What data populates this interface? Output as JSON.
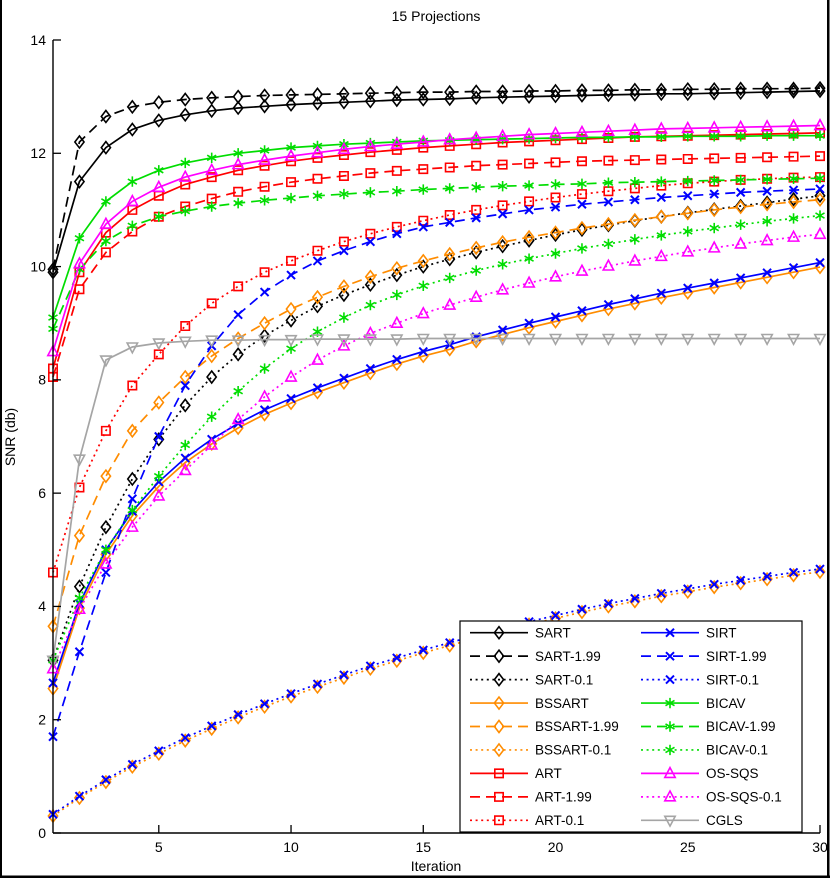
{
  "chart_data": {
    "type": "line",
    "title": "15 Projections",
    "xlabel": "Iteration",
    "ylabel": "SNR (db)",
    "xlim": [
      1,
      30
    ],
    "ylim": [
      0,
      14
    ],
    "x_ticks": [
      5,
      10,
      15,
      20,
      25,
      30
    ],
    "y_ticks": [
      0,
      2,
      4,
      6,
      8,
      10,
      12,
      14
    ],
    "grid": false,
    "legend_position": "inside-bottom-right",
    "legend_columns": [
      [
        "SART",
        "SART-1.99",
        "SART-0.1",
        "BSSART",
        "BSSART-1.99",
        "BSSART-0.1",
        "ART",
        "ART-1.99",
        "ART-0.1"
      ],
      [
        "SIRT",
        "SIRT-1.99",
        "SIRT-0.1",
        "BICAV",
        "BICAV-1.99",
        "BICAV-0.1",
        "OS-SQS",
        "OS-SQS-0.1",
        "CGLS"
      ]
    ],
    "x": [
      1,
      2,
      3,
      4,
      5,
      6,
      7,
      8,
      9,
      10,
      11,
      12,
      13,
      14,
      15,
      16,
      17,
      18,
      19,
      20,
      21,
      22,
      23,
      24,
      25,
      26,
      27,
      28,
      29,
      30
    ],
    "series": [
      {
        "name": "SART",
        "color": "#000000",
        "line": "solid",
        "marker": "diamond",
        "values": [
          9.9,
          11.5,
          12.1,
          12.42,
          12.58,
          12.68,
          12.75,
          12.8,
          12.83,
          12.86,
          12.88,
          12.9,
          12.92,
          12.94,
          12.95,
          12.96,
          12.98,
          12.99,
          13.0,
          13.01,
          13.02,
          13.03,
          13.04,
          13.05,
          13.05,
          13.06,
          13.07,
          13.08,
          13.09,
          13.1
        ]
      },
      {
        "name": "SART-1.99",
        "color": "#000000",
        "line": "dashed",
        "marker": "diamond",
        "values": [
          9.95,
          12.2,
          12.65,
          12.82,
          12.9,
          12.95,
          12.98,
          13.0,
          13.02,
          13.03,
          13.04,
          13.05,
          13.06,
          13.07,
          13.08,
          13.08,
          13.09,
          13.09,
          13.1,
          13.1,
          13.11,
          13.11,
          13.12,
          13.12,
          13.13,
          13.13,
          13.14,
          13.14,
          13.14,
          13.15
        ]
      },
      {
        "name": "SART-0.1",
        "color": "#000000",
        "line": "dotted",
        "marker": "diamond",
        "values": [
          3.05,
          4.35,
          5.4,
          6.25,
          6.95,
          7.55,
          8.05,
          8.45,
          8.78,
          9.05,
          9.3,
          9.5,
          9.68,
          9.85,
          10.0,
          10.13,
          10.25,
          10.36,
          10.46,
          10.56,
          10.65,
          10.73,
          10.81,
          10.88,
          10.95,
          11.01,
          11.07,
          11.13,
          11.19,
          11.25
        ]
      },
      {
        "name": "BSSART",
        "color": "#FF8C00",
        "line": "solid",
        "marker": "diamond",
        "values": [
          2.55,
          3.97,
          4.92,
          5.6,
          6.12,
          6.54,
          6.87,
          7.15,
          7.39,
          7.59,
          7.78,
          7.95,
          8.12,
          8.28,
          8.42,
          8.54,
          8.68,
          8.8,
          8.92,
          9.03,
          9.14,
          9.25,
          9.35,
          9.45,
          9.54,
          9.63,
          9.72,
          9.81,
          9.9,
          9.99
        ]
      },
      {
        "name": "BSSART-1.99",
        "color": "#FF8C00",
        "line": "dashed",
        "marker": "diamond",
        "values": [
          3.65,
          5.25,
          6.3,
          7.1,
          7.6,
          8.05,
          8.42,
          8.73,
          9.0,
          9.25,
          9.46,
          9.65,
          9.82,
          9.97,
          10.1,
          10.22,
          10.33,
          10.43,
          10.52,
          10.6,
          10.68,
          10.75,
          10.82,
          10.88,
          10.94,
          11.0,
          11.05,
          11.1,
          11.14,
          11.18
        ]
      },
      {
        "name": "BSSART-0.1",
        "color": "#FF8C00",
        "line": "dotted",
        "marker": "diamond",
        "values": [
          0.3,
          0.62,
          0.9,
          1.17,
          1.4,
          1.63,
          1.84,
          2.04,
          2.23,
          2.41,
          2.58,
          2.74,
          2.9,
          3.04,
          3.18,
          3.31,
          3.44,
          3.56,
          3.68,
          3.79,
          3.9,
          4.0,
          4.09,
          4.18,
          4.26,
          4.34,
          4.41,
          4.48,
          4.55,
          4.61
        ]
      },
      {
        "name": "ART",
        "color": "#FF0000",
        "line": "solid",
        "marker": "square",
        "values": [
          8.2,
          9.9,
          10.6,
          11.0,
          11.25,
          11.45,
          11.58,
          11.7,
          11.78,
          11.86,
          11.92,
          11.97,
          12.02,
          12.06,
          12.1,
          12.13,
          12.16,
          12.19,
          12.21,
          12.23,
          12.25,
          12.27,
          12.29,
          12.3,
          12.31,
          12.32,
          12.33,
          12.34,
          12.35,
          12.36
        ]
      },
      {
        "name": "ART-1.99",
        "color": "#FF0000",
        "line": "dashed",
        "marker": "square",
        "values": [
          8.05,
          9.6,
          10.25,
          10.62,
          10.88,
          11.06,
          11.2,
          11.32,
          11.41,
          11.49,
          11.55,
          11.6,
          11.65,
          11.69,
          11.72,
          11.75,
          11.78,
          11.8,
          11.82,
          11.84,
          11.86,
          11.87,
          11.88,
          11.89,
          11.9,
          11.91,
          11.92,
          11.93,
          11.94,
          11.95
        ]
      },
      {
        "name": "ART-0.1",
        "color": "#FF0000",
        "line": "dotted",
        "marker": "square",
        "values": [
          4.6,
          6.1,
          7.1,
          7.9,
          8.45,
          8.95,
          9.35,
          9.65,
          9.9,
          10.1,
          10.28,
          10.44,
          10.58,
          10.7,
          10.81,
          10.91,
          11.0,
          11.08,
          11.15,
          11.22,
          11.28,
          11.33,
          11.38,
          11.43,
          11.47,
          11.5,
          11.53,
          11.55,
          11.57,
          11.58
        ]
      },
      {
        "name": "SIRT",
        "color": "#0000FF",
        "line": "solid",
        "marker": "x",
        "values": [
          2.65,
          4.05,
          5.0,
          5.68,
          6.2,
          6.62,
          6.95,
          7.23,
          7.47,
          7.67,
          7.86,
          8.03,
          8.2,
          8.36,
          8.5,
          8.62,
          8.76,
          8.88,
          9.0,
          9.11,
          9.22,
          9.33,
          9.43,
          9.53,
          9.62,
          9.71,
          9.8,
          9.89,
          9.98,
          10.07
        ]
      },
      {
        "name": "SIRT-1.99",
        "color": "#0000FF",
        "line": "dashed",
        "marker": "x",
        "values": [
          1.7,
          3.2,
          4.6,
          5.9,
          7.0,
          7.9,
          8.6,
          9.15,
          9.55,
          9.85,
          10.1,
          10.28,
          10.44,
          10.58,
          10.7,
          10.78,
          10.86,
          10.93,
          11.0,
          11.05,
          11.1,
          11.14,
          11.18,
          11.22,
          11.25,
          11.28,
          11.31,
          11.33,
          11.35,
          11.37
        ]
      },
      {
        "name": "SIRT-0.1",
        "color": "#0000FF",
        "line": "dotted",
        "marker": "x",
        "values": [
          0.33,
          0.65,
          0.94,
          1.21,
          1.45,
          1.68,
          1.89,
          2.09,
          2.28,
          2.46,
          2.63,
          2.79,
          2.95,
          3.09,
          3.23,
          3.36,
          3.49,
          3.61,
          3.73,
          3.84,
          3.95,
          4.05,
          4.14,
          4.23,
          4.31,
          4.39,
          4.46,
          4.53,
          4.6,
          4.66
        ]
      },
      {
        "name": "BICAV",
        "color": "#00DD00",
        "line": "solid",
        "marker": "asterisk",
        "values": [
          9.1,
          10.5,
          11.15,
          11.5,
          11.7,
          11.83,
          11.92,
          12.0,
          12.05,
          12.1,
          12.13,
          12.16,
          12.18,
          12.2,
          12.22,
          12.23,
          12.24,
          12.25,
          12.26,
          12.27,
          12.28,
          12.28,
          12.29,
          12.29,
          12.3,
          12.3,
          12.3,
          12.31,
          12.31,
          12.31
        ]
      },
      {
        "name": "BICAV-1.99",
        "color": "#00DD00",
        "line": "dashed",
        "marker": "asterisk",
        "values": [
          8.9,
          9.95,
          10.45,
          10.72,
          10.88,
          10.98,
          11.06,
          11.12,
          11.17,
          11.21,
          11.25,
          11.28,
          11.31,
          11.33,
          11.36,
          11.38,
          11.4,
          11.42,
          11.43,
          11.45,
          11.46,
          11.48,
          11.49,
          11.5,
          11.51,
          11.52,
          11.53,
          11.54,
          11.55,
          11.56
        ]
      },
      {
        "name": "BICAV-0.1",
        "color": "#00DD00",
        "line": "dotted",
        "marker": "asterisk",
        "values": [
          3.05,
          4.15,
          5.0,
          5.7,
          6.3,
          6.85,
          7.35,
          7.8,
          8.2,
          8.55,
          8.85,
          9.1,
          9.32,
          9.5,
          9.66,
          9.8,
          9.93,
          10.04,
          10.14,
          10.23,
          10.32,
          10.4,
          10.48,
          10.55,
          10.62,
          10.68,
          10.74,
          10.8,
          10.85,
          10.9
        ]
      },
      {
        "name": "OS-SQS",
        "color": "#FF00FF",
        "line": "solid",
        "marker": "triangle-up",
        "values": [
          8.5,
          10.05,
          10.75,
          11.15,
          11.4,
          11.58,
          11.7,
          11.8,
          11.88,
          11.95,
          12.01,
          12.07,
          12.12,
          12.16,
          12.2,
          12.24,
          12.27,
          12.3,
          12.33,
          12.35,
          12.37,
          12.39,
          12.41,
          12.43,
          12.44,
          12.45,
          12.46,
          12.47,
          12.48,
          12.49
        ]
      },
      {
        "name": "OS-SQS-0.1",
        "color": "#FF00FF",
        "line": "dotted",
        "marker": "triangle-up",
        "values": [
          2.9,
          3.95,
          4.75,
          5.4,
          5.95,
          6.4,
          6.85,
          7.3,
          7.7,
          8.05,
          8.35,
          8.6,
          8.82,
          9.0,
          9.17,
          9.32,
          9.46,
          9.59,
          9.71,
          9.82,
          9.92,
          10.01,
          10.1,
          10.18,
          10.26,
          10.33,
          10.4,
          10.46,
          10.52,
          10.57
        ]
      },
      {
        "name": "CGLS",
        "color": "#A5A5A5",
        "line": "solid",
        "marker": "triangle-down",
        "values": [
          3.05,
          6.6,
          8.35,
          8.58,
          8.65,
          8.68,
          8.7,
          8.7,
          8.71,
          8.71,
          8.72,
          8.72,
          8.72,
          8.72,
          8.73,
          8.73,
          8.73,
          8.73,
          8.73,
          8.73,
          8.73,
          8.73,
          8.73,
          8.73,
          8.73,
          8.73,
          8.73,
          8.73,
          8.73,
          8.73
        ]
      }
    ]
  },
  "frame_color": "#000000",
  "background_color": "#ffffff"
}
